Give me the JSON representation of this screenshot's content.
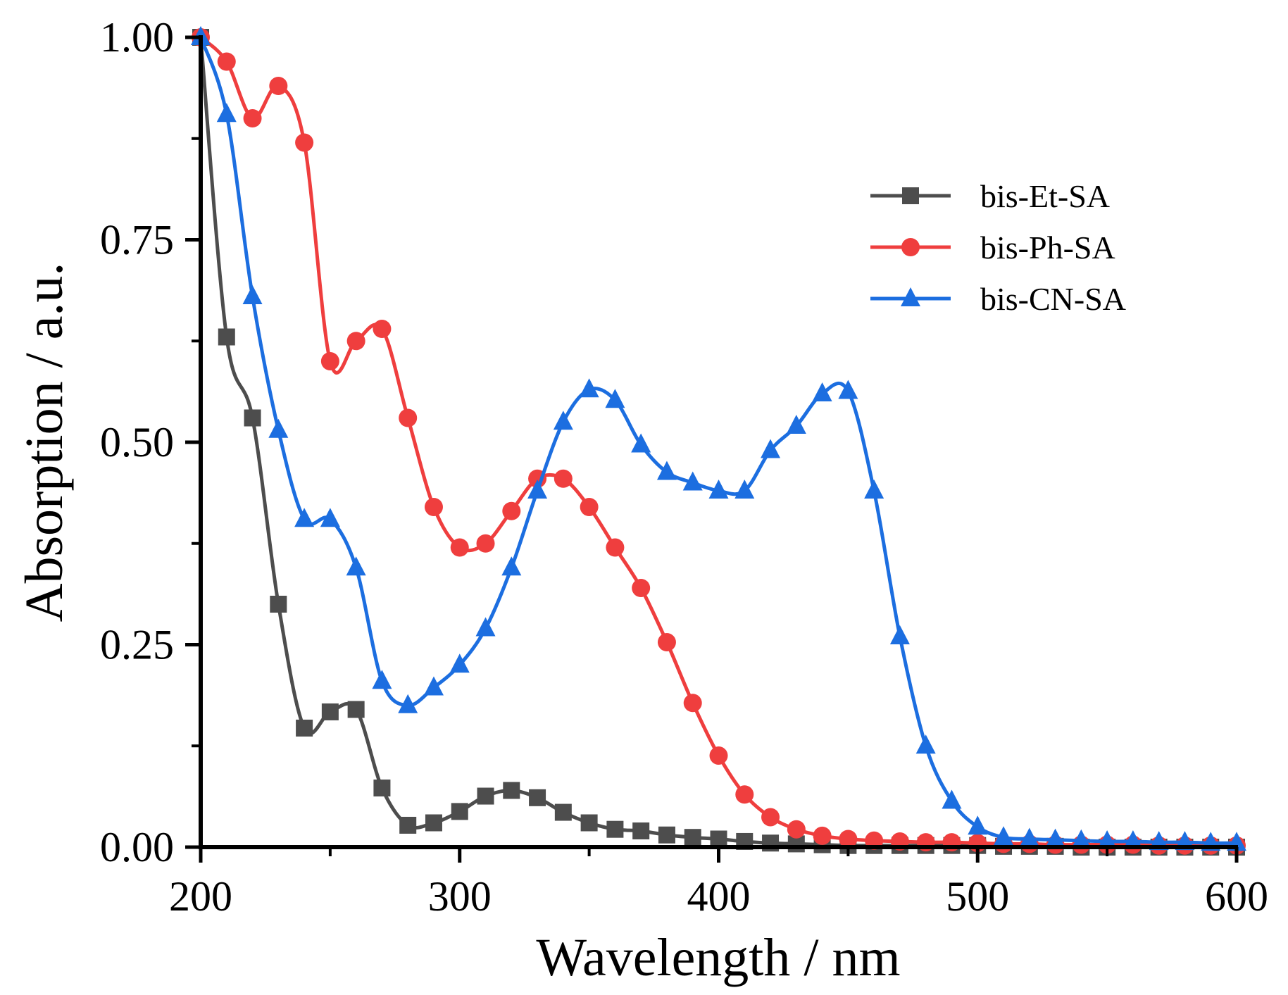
{
  "chart_data": {
    "type": "line",
    "title": "",
    "xlabel": "Wavelength / nm",
    "ylabel": "Absorption / a.u.",
    "xlim": [
      200,
      600
    ],
    "ylim": [
      0,
      1.0
    ],
    "xticks": [
      "200",
      "300",
      "400",
      "500",
      "600"
    ],
    "xtick_values": [
      200,
      300,
      400,
      500,
      600
    ],
    "yticks": [
      "0.00",
      "0.25",
      "0.50",
      "0.75",
      "1.00"
    ],
    "ytick_values": [
      0,
      0.25,
      0.5,
      0.75,
      1.0
    ],
    "grid": false,
    "legend_position": "top-right",
    "x": [
      200,
      210,
      220,
      230,
      240,
      250,
      260,
      270,
      280,
      290,
      300,
      310,
      320,
      330,
      340,
      350,
      360,
      370,
      380,
      390,
      400,
      410,
      420,
      430,
      440,
      450,
      460,
      470,
      480,
      490,
      500,
      510,
      520,
      530,
      540,
      550,
      560,
      570,
      580,
      590,
      600
    ],
    "series": [
      {
        "name": "bis-Et-SA",
        "color": "#4d4d4d",
        "marker": "square",
        "values": [
          1.0,
          0.63,
          0.53,
          0.3,
          0.147,
          0.167,
          0.17,
          0.073,
          0.027,
          0.03,
          0.044,
          0.063,
          0.07,
          0.061,
          0.043,
          0.03,
          0.022,
          0.02,
          0.015,
          0.012,
          0.01,
          0.007,
          0.005,
          0.004,
          0.003,
          0.002,
          0.002,
          0.002,
          0.002,
          0.002,
          0.002,
          0.001,
          0.001,
          0.001,
          0.0,
          0.0,
          0.0,
          0.0,
          0.0,
          0.0,
          0.0
        ]
      },
      {
        "name": "bis-Ph-SA",
        "color": "#ef3e3e",
        "marker": "circle",
        "values": [
          1.0,
          0.97,
          0.9,
          0.94,
          0.87,
          0.6,
          0.625,
          0.64,
          0.53,
          0.42,
          0.37,
          0.375,
          0.415,
          0.455,
          0.455,
          0.42,
          0.37,
          0.32,
          0.253,
          0.178,
          0.113,
          0.065,
          0.037,
          0.022,
          0.014,
          0.01,
          0.008,
          0.007,
          0.006,
          0.006,
          0.005,
          0.004,
          0.004,
          0.003,
          0.003,
          0.003,
          0.003,
          0.002,
          0.002,
          0.002,
          0.002
        ]
      },
      {
        "name": "bis-CN-SA",
        "color": "#1c6ee0",
        "marker": "triangle",
        "values": [
          1.0,
          0.905,
          0.68,
          0.515,
          0.405,
          0.405,
          0.345,
          0.205,
          0.175,
          0.197,
          0.225,
          0.27,
          0.345,
          0.44,
          0.525,
          0.565,
          0.552,
          0.497,
          0.463,
          0.45,
          0.44,
          0.44,
          0.49,
          0.52,
          0.56,
          0.563,
          0.44,
          0.26,
          0.125,
          0.057,
          0.025,
          0.012,
          0.01,
          0.009,
          0.008,
          0.007,
          0.007,
          0.006,
          0.006,
          0.005,
          0.005
        ]
      }
    ]
  }
}
